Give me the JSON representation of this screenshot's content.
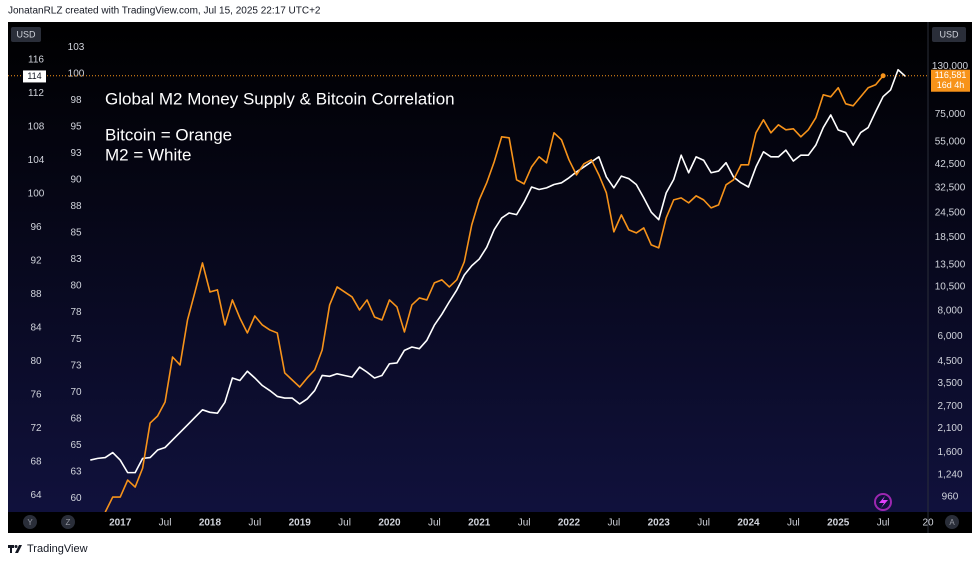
{
  "header": {
    "text": "JonatanRLZ created with TradingView.com, Jul 15, 2025 22:17 UTC+2"
  },
  "footer": {
    "brand": "TradingView"
  },
  "controls": {
    "left_unit": "USD",
    "right_unit": "USD",
    "buttons": [
      "Y",
      "Z",
      "A"
    ]
  },
  "chart_data": {
    "type": "line",
    "title": "Global M2 Money Supply & Bitcoin Correlation",
    "annotations": [
      "Bitcoin = Orange",
      "M2 = White"
    ],
    "grid": false,
    "xlim": [
      "2015-10",
      "2026-01"
    ],
    "xticks": [
      {
        "value": "2017-01",
        "label": "2017"
      },
      {
        "value": "2017-07",
        "label": "Jul"
      },
      {
        "value": "2018-01",
        "label": "2018"
      },
      {
        "value": "2018-07",
        "label": "Jul"
      },
      {
        "value": "2019-01",
        "label": "2019"
      },
      {
        "value": "2019-07",
        "label": "Jul"
      },
      {
        "value": "2020-01",
        "label": "2020"
      },
      {
        "value": "2020-07",
        "label": "Jul"
      },
      {
        "value": "2021-01",
        "label": "2021"
      },
      {
        "value": "2021-07",
        "label": "Jul"
      },
      {
        "value": "2022-01",
        "label": "2022"
      },
      {
        "value": "2022-07",
        "label": "Jul"
      },
      {
        "value": "2023-01",
        "label": "2023"
      },
      {
        "value": "2023-07",
        "label": "Jul"
      },
      {
        "value": "2024-01",
        "label": "2024"
      },
      {
        "value": "2024-07",
        "label": "Jul"
      },
      {
        "value": "2025-01",
        "label": "2025"
      },
      {
        "value": "2025-07",
        "label": "Jul"
      },
      {
        "value": "2026-01",
        "label": "20"
      }
    ],
    "ylim": [
      62,
      120.5
    ],
    "yticks": [
      64,
      68,
      72,
      76,
      80,
      84,
      88,
      92,
      96,
      100,
      104,
      108,
      112,
      116
    ],
    "y2lim": [
      58.7,
      104.9
    ],
    "y2ticks": [
      60,
      {
        "value": 62.5,
        "label": "63"
      },
      65,
      {
        "value": 67.5,
        "label": "68"
      },
      70,
      {
        "value": 72.5,
        "label": "73"
      },
      75,
      {
        "value": 77.5,
        "label": "78"
      },
      80,
      {
        "value": 82.5,
        "label": "83"
      },
      85,
      {
        "value": 87.5,
        "label": "88"
      },
      90,
      {
        "value": 92.5,
        "label": "93"
      },
      95,
      {
        "value": 97.5,
        "label": "98"
      },
      100,
      {
        "value": 102.5,
        "label": "103"
      }
    ],
    "y3log": true,
    "y3lim": [
      810,
      215000
    ],
    "y3ticks": [
      960,
      {
        "value": 1240,
        "label": "1,240"
      },
      {
        "value": 1600,
        "label": "1,600"
      },
      {
        "value": 2100,
        "label": "2,100"
      },
      {
        "value": 2700,
        "label": "2,700"
      },
      {
        "value": 3500,
        "label": "3,500"
      },
      {
        "value": 4500,
        "label": "4,500"
      },
      {
        "value": 6000,
        "label": "6,000"
      },
      {
        "value": 8000,
        "label": "8,000"
      },
      {
        "value": 10500,
        "label": "10,500"
      },
      {
        "value": 13500,
        "label": "13,500"
      },
      {
        "value": 18500,
        "label": "18,500"
      },
      {
        "value": 24500,
        "label": "24,500"
      },
      {
        "value": 32500,
        "label": "32,500"
      },
      {
        "value": 42500,
        "label": "42,500"
      },
      {
        "value": 55000,
        "label": "55,000"
      },
      {
        "value": 75000,
        "label": "75,000"
      },
      {
        "value": 130000,
        "label": "130,000"
      }
    ],
    "series": [
      {
        "color": "#ffffff",
        "axis": "y",
        "last_value_marker": 114,
        "x": [
          "2016-09",
          "2016-10",
          "2016-11",
          "2016-12",
          "2017-01",
          "2017-02",
          "2017-03",
          "2017-04",
          "2017-05",
          "2017-06",
          "2017-07",
          "2017-08",
          "2017-09",
          "2017-10",
          "2017-11",
          "2017-12",
          "2018-01",
          "2018-02",
          "2018-03",
          "2018-04",
          "2018-05",
          "2018-06",
          "2018-07",
          "2018-08",
          "2018-09",
          "2018-10",
          "2018-11",
          "2018-12",
          "2019-01",
          "2019-02",
          "2019-03",
          "2019-04",
          "2019-05",
          "2019-06",
          "2019-07",
          "2019-08",
          "2019-09",
          "2019-10",
          "2019-11",
          "2019-12",
          "2020-01",
          "2020-02",
          "2020-03",
          "2020-04",
          "2020-05",
          "2020-06",
          "2020-07",
          "2020-08",
          "2020-09",
          "2020-10",
          "2020-11",
          "2020-12",
          "2021-01",
          "2021-02",
          "2021-03",
          "2021-04",
          "2021-05",
          "2021-06",
          "2021-07",
          "2021-08",
          "2021-09",
          "2021-10",
          "2021-11",
          "2021-12",
          "2022-01",
          "2022-02",
          "2022-03",
          "2022-04",
          "2022-05",
          "2022-06",
          "2022-07",
          "2022-08",
          "2022-09",
          "2022-10",
          "2022-11",
          "2022-12",
          "2023-01",
          "2023-02",
          "2023-03",
          "2023-04",
          "2023-05",
          "2023-06",
          "2023-07",
          "2023-08",
          "2023-09",
          "2023-10",
          "2023-11",
          "2023-12",
          "2024-01",
          "2024-02",
          "2024-03",
          "2024-04",
          "2024-05",
          "2024-06",
          "2024-07",
          "2024-08",
          "2024-09",
          "2024-10",
          "2024-11",
          "2024-12",
          "2025-01",
          "2025-02",
          "2025-03",
          "2025-04",
          "2025-05",
          "2025-06",
          "2025-07",
          "2025-08",
          "2025-09",
          "2025-10"
        ],
        "values": [
          68.2,
          68.4,
          68.5,
          69.1,
          68.2,
          66.7,
          66.7,
          68.4,
          68.5,
          69.4,
          69.7,
          70.6,
          71.5,
          72.4,
          73.3,
          74.2,
          73.9,
          73.8,
          75.1,
          78.0,
          77.7,
          78.8,
          78.0,
          77.1,
          76.5,
          75.8,
          75.6,
          75.6,
          74.9,
          75.5,
          76.5,
          78.3,
          78.2,
          78.5,
          78.3,
          78.1,
          79.3,
          78.7,
          78.0,
          78.3,
          79.7,
          79.8,
          81.3,
          81.7,
          81.5,
          82.5,
          84.3,
          85.6,
          87.1,
          88.5,
          90.3,
          91.4,
          92.2,
          93.6,
          95.7,
          97.1,
          97.7,
          97.5,
          99.0,
          100.8,
          100.5,
          100.7,
          101.1,
          101.3,
          101.9,
          102.6,
          103.2,
          103.8,
          104.4,
          102.0,
          100.7,
          102.1,
          101.8,
          101.1,
          99.5,
          97.8,
          96.9,
          100.1,
          101.7,
          104.6,
          102.5,
          104.4,
          104.0,
          102.5,
          102.7,
          103.7,
          102.0,
          101.3,
          100.8,
          103.2,
          105.0,
          104.4,
          104.4,
          105.2,
          103.9,
          104.6,
          104.6,
          105.8,
          107.9,
          109.4,
          107.6,
          107.3,
          105.8,
          107.3,
          107.9,
          109.8,
          111.6,
          112.4,
          114.8,
          114.0
        ]
      },
      {
        "color": "#f7931a",
        "axis": "y3",
        "price_label": {
          "value": 116581,
          "label": "116,581"
        },
        "countdown": "16d 4h",
        "x": [
          "2016-11",
          "2016-12",
          "2017-01",
          "2017-02",
          "2017-03",
          "2017-04",
          "2017-05",
          "2017-06",
          "2017-07",
          "2017-08",
          "2017-09",
          "2017-10",
          "2017-11",
          "2017-12",
          "2018-01",
          "2018-02",
          "2018-03",
          "2018-04",
          "2018-05",
          "2018-06",
          "2018-07",
          "2018-08",
          "2018-09",
          "2018-10",
          "2018-11",
          "2018-12",
          "2019-01",
          "2019-02",
          "2019-03",
          "2019-04",
          "2019-05",
          "2019-06",
          "2019-07",
          "2019-08",
          "2019-09",
          "2019-10",
          "2019-11",
          "2019-12",
          "2020-01",
          "2020-02",
          "2020-03",
          "2020-04",
          "2020-05",
          "2020-06",
          "2020-07",
          "2020-08",
          "2020-09",
          "2020-10",
          "2020-11",
          "2020-12",
          "2021-01",
          "2021-02",
          "2021-03",
          "2021-04",
          "2021-05",
          "2021-06",
          "2021-07",
          "2021-08",
          "2021-09",
          "2021-10",
          "2021-11",
          "2021-12",
          "2022-01",
          "2022-02",
          "2022-03",
          "2022-04",
          "2022-05",
          "2022-06",
          "2022-07",
          "2022-08",
          "2022-09",
          "2022-10",
          "2022-11",
          "2022-12",
          "2023-01",
          "2023-02",
          "2023-03",
          "2023-04",
          "2023-05",
          "2023-06",
          "2023-07",
          "2023-08",
          "2023-09",
          "2023-10",
          "2023-11",
          "2023-12",
          "2024-01",
          "2024-02",
          "2024-03",
          "2024-04",
          "2024-05",
          "2024-06",
          "2024-07",
          "2024-08",
          "2024-09",
          "2024-10",
          "2024-11",
          "2024-12",
          "2025-01",
          "2025-02",
          "2025-03",
          "2025-04",
          "2025-05",
          "2025-06",
          "2025-07"
        ],
        "values": [
          809,
          960,
          960,
          1165,
          1076,
          1335,
          2231,
          2417,
          2835,
          4735,
          4324,
          7219,
          9935,
          13820,
          9935,
          10170,
          6819,
          9068,
          7385,
          6227,
          7555,
          6819,
          6443,
          6227,
          3947,
          3643,
          3364,
          3728,
          4084,
          5128,
          8566,
          10520,
          9935,
          9383,
          8091,
          9068,
          7471,
          7219,
          9068,
          8372,
          6298,
          8566,
          9276,
          9068,
          11010,
          11400,
          10520,
          11400,
          13990,
          21320,
          28350,
          34420,
          43720,
          58140,
          57480,
          35620,
          34020,
          41300,
          46300,
          43230,
          60850,
          56200,
          44730,
          37690,
          42730,
          44730,
          37690,
          30710,
          19690,
          23890,
          20140,
          19460,
          20600,
          16970,
          16410,
          23100,
          28350,
          29000,
          27400,
          29670,
          28350,
          25880,
          26770,
          33640,
          35620,
          42250,
          42250,
          60850,
          70560,
          60850,
          66650,
          62970,
          63680,
          58140,
          62970,
          72180,
          93840,
          91720,
          101700,
          84690,
          82780,
          91720,
          101700,
          105200,
          116581
        ]
      }
    ]
  }
}
